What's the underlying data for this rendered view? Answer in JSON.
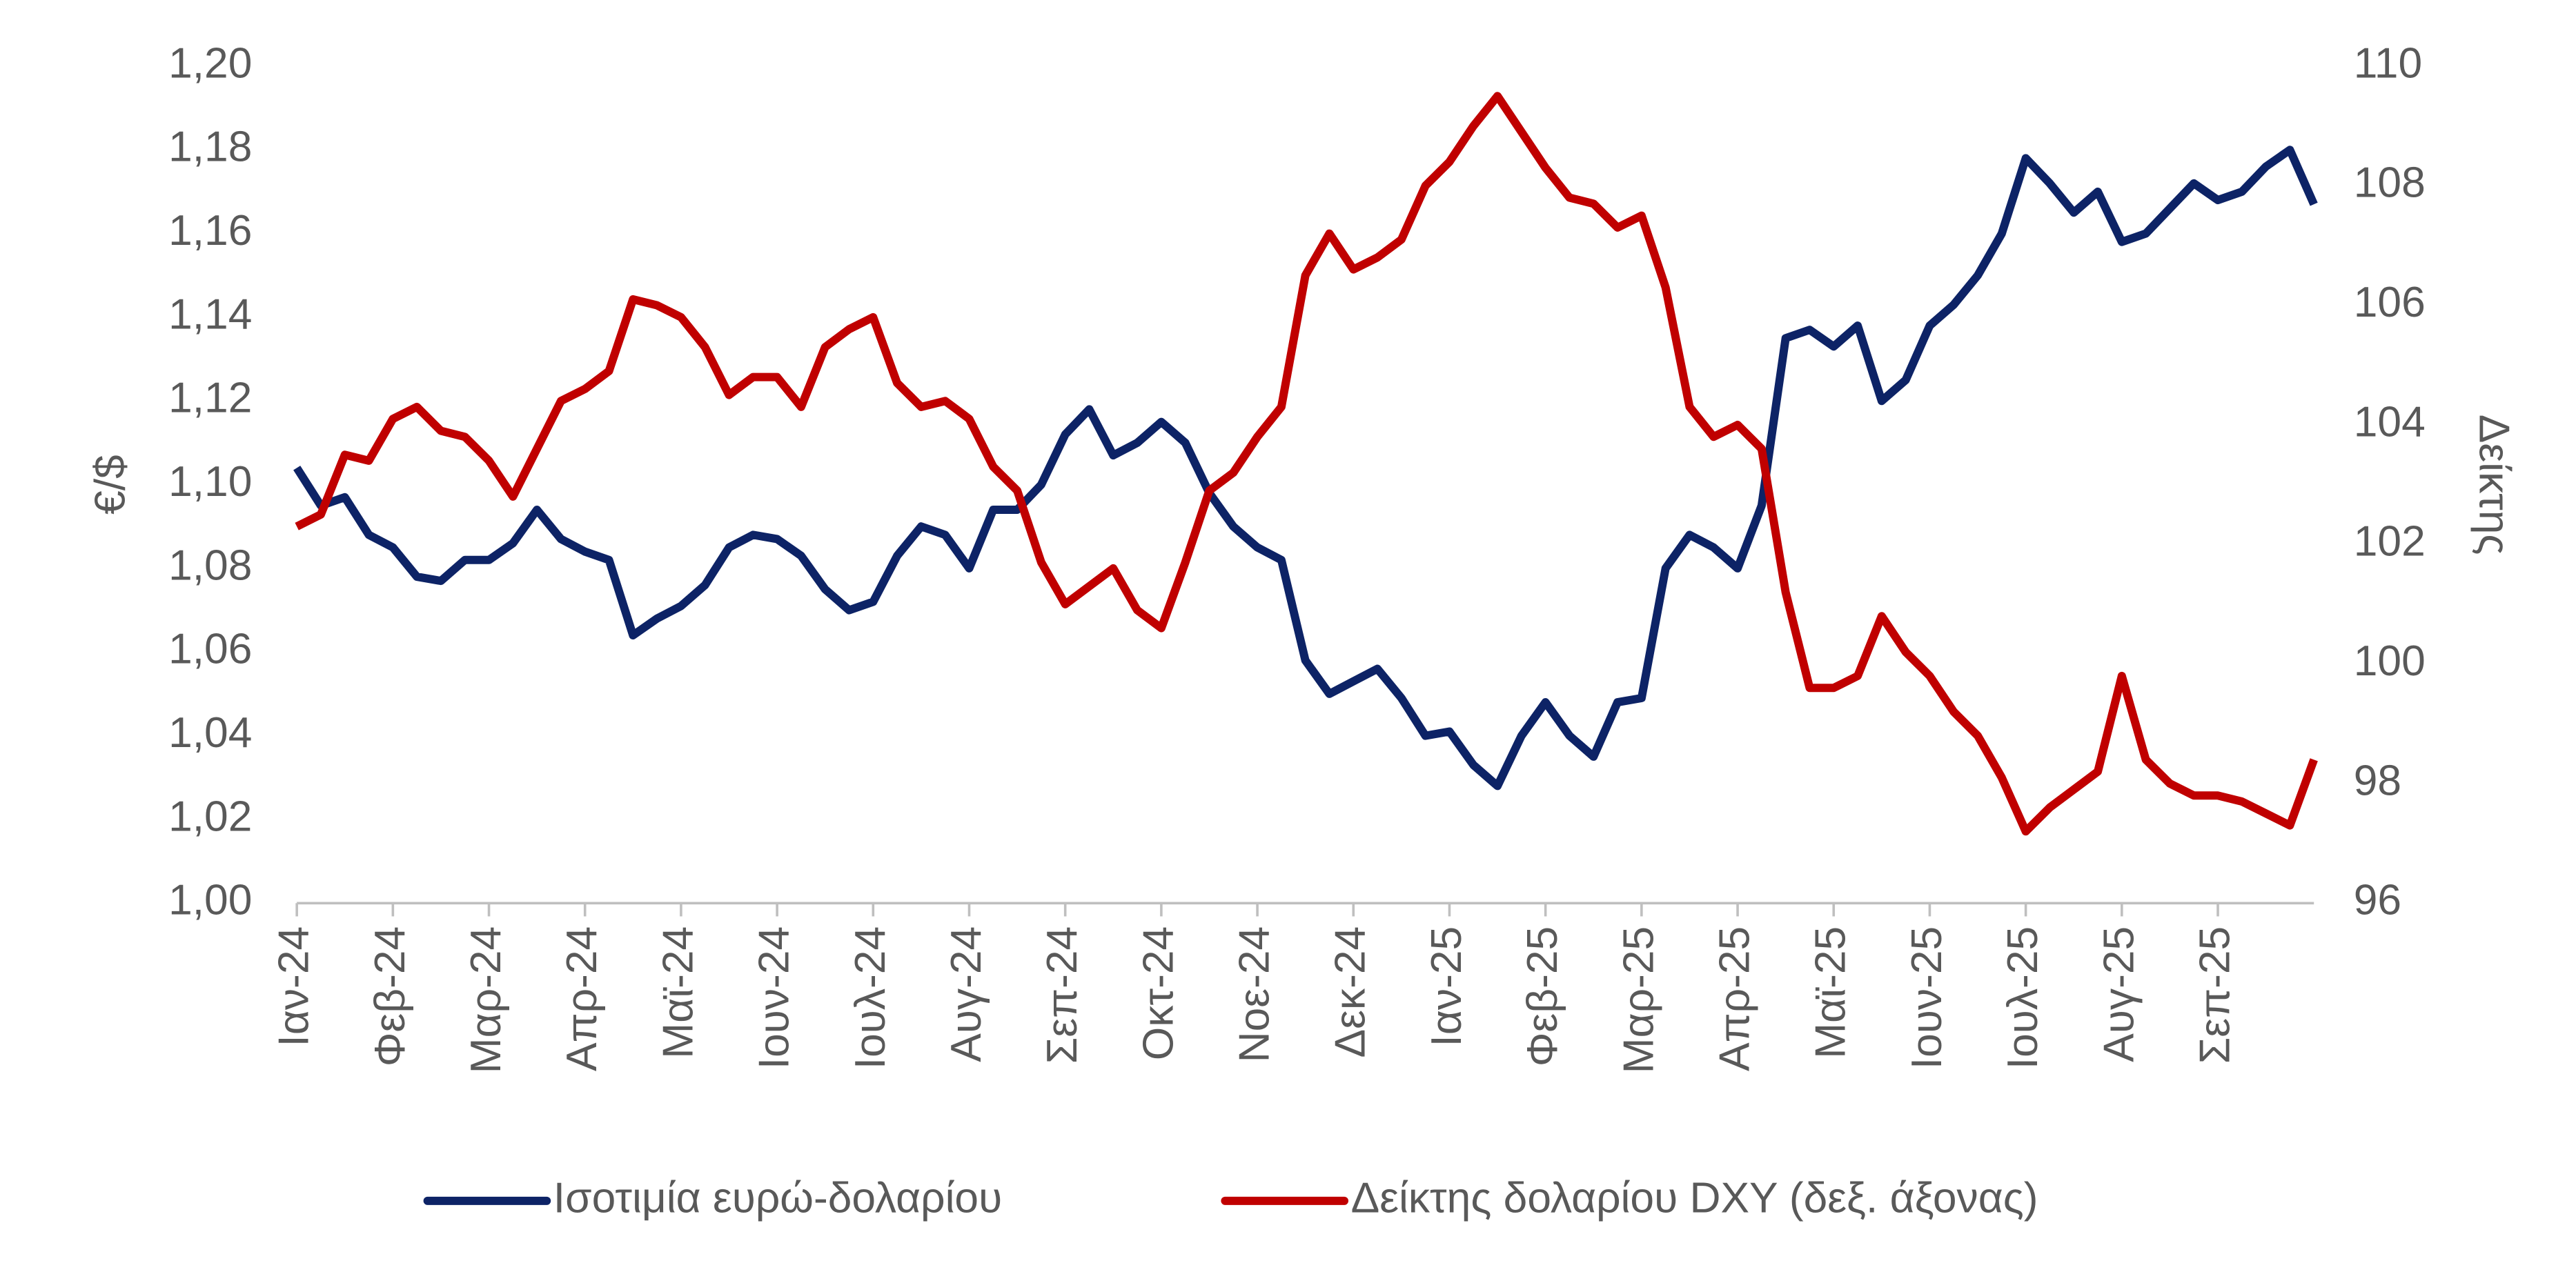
{
  "chart_data": {
    "type": "line",
    "ylabel": "€/$",
    "y2label": "Δείκτης",
    "legend": "bottom",
    "categories": [
      "Ιαν-24",
      null,
      null,
      null,
      "Φεβ-24",
      null,
      null,
      null,
      "Μαρ-24",
      null,
      null,
      null,
      "Απρ-24",
      null,
      null,
      null,
      "Μαϊ-24",
      null,
      null,
      null,
      "Ιουν-24",
      null,
      null,
      null,
      "Ιουλ-24",
      null,
      null,
      null,
      "Αυγ-24",
      null,
      null,
      null,
      "Σεπ-24",
      null,
      null,
      null,
      "Οκτ-24",
      null,
      null,
      null,
      "Νοε-24",
      null,
      null,
      null,
      "Δεκ-24",
      null,
      null,
      null,
      "Ιαν-25",
      null,
      null,
      null,
      "Φεβ-25",
      null,
      null,
      null,
      "Μαρ-25",
      null,
      null,
      null,
      "Απρ-25",
      null,
      null,
      null,
      "Μαϊ-25",
      null,
      null,
      null,
      "Ιουν-25",
      null,
      null,
      null,
      "Ιουλ-25",
      null,
      null,
      null,
      "Αυγ-25",
      null,
      null,
      null,
      "Σεπ-25",
      null,
      null,
      null,
      null
    ],
    "series": [
      {
        "name": "Ισοτιμία ευρώ-δολαρίου",
        "color": "#0d2366",
        "axis": "y",
        "values": [
          1.104,
          1.095,
          1.097,
          1.088,
          1.085,
          1.078,
          1.077,
          1.082,
          1.082,
          1.086,
          1.094,
          1.087,
          1.084,
          1.082,
          1.064,
          1.068,
          1.071,
          1.076,
          1.085,
          1.088,
          1.087,
          1.083,
          1.075,
          1.07,
          1.072,
          1.083,
          1.09,
          1.088,
          1.08,
          1.094,
          1.094,
          1.1,
          1.112,
          1.118,
          1.107,
          1.11,
          1.115,
          1.11,
          1.098,
          1.09,
          1.085,
          1.082,
          1.058,
          1.05,
          1.053,
          1.056,
          1.049,
          1.04,
          1.041,
          1.033,
          1.028,
          1.04,
          1.048,
          1.04,
          1.035,
          1.048,
          1.049,
          1.08,
          1.088,
          1.085,
          1.08,
          1.095,
          1.135,
          1.137,
          1.133,
          1.138,
          1.12,
          1.125,
          1.138,
          1.143,
          1.15,
          1.16,
          1.178,
          1.172,
          1.165,
          1.17,
          1.158,
          1.16,
          1.166,
          1.172,
          1.168,
          1.17,
          1.176,
          1.18,
          1.167
        ]
      },
      {
        "name": "Δείκτης δολαρίου DXY (δεξ. άξονας)",
        "color": "#c00000",
        "axis": "y2",
        "values": [
          102.3,
          102.5,
          103.5,
          103.4,
          104.1,
          104.3,
          103.9,
          103.8,
          103.4,
          102.8,
          103.6,
          104.4,
          104.6,
          104.9,
          106.1,
          106.0,
          105.8,
          105.3,
          104.5,
          104.8,
          104.8,
          104.3,
          105.3,
          105.6,
          105.8,
          104.7,
          104.3,
          104.4,
          104.1,
          103.3,
          102.9,
          101.7,
          101.0,
          101.3,
          101.6,
          100.9,
          100.6,
          101.7,
          102.9,
          103.2,
          103.8,
          104.3,
          106.5,
          107.2,
          106.6,
          106.8,
          107.1,
          108.0,
          108.4,
          109.0,
          109.5,
          108.9,
          108.3,
          107.8,
          107.7,
          107.3,
          107.5,
          106.3,
          104.3,
          103.8,
          104.0,
          103.6,
          101.2,
          99.6,
          99.6,
          99.8,
          100.8,
          100.2,
          99.8,
          99.2,
          98.8,
          98.1,
          97.2,
          97.6,
          97.9,
          98.2,
          99.8,
          98.4,
          98.0,
          97.8,
          97.8,
          97.7,
          97.5,
          97.3,
          98.4
        ]
      }
    ],
    "ylim": [
      1.0,
      1.2
    ],
    "yticks": [
      {
        "value": 1.0,
        "label": "1,00"
      },
      {
        "value": 1.02,
        "label": "1,02"
      },
      {
        "value": 1.04,
        "label": "1,04"
      },
      {
        "value": 1.06,
        "label": "1,06"
      },
      {
        "value": 1.08,
        "label": "1,08"
      },
      {
        "value": 1.1,
        "label": "1,10"
      },
      {
        "value": 1.12,
        "label": "1,12"
      },
      {
        "value": 1.14,
        "label": "1,14"
      },
      {
        "value": 1.16,
        "label": "1,16"
      },
      {
        "value": 1.18,
        "label": "1,18"
      },
      {
        "value": 1.2,
        "label": "1,20"
      }
    ],
    "y2lim": [
      96,
      110
    ],
    "y2ticks": [
      96,
      98,
      100,
      102,
      104,
      106,
      108,
      110
    ]
  }
}
